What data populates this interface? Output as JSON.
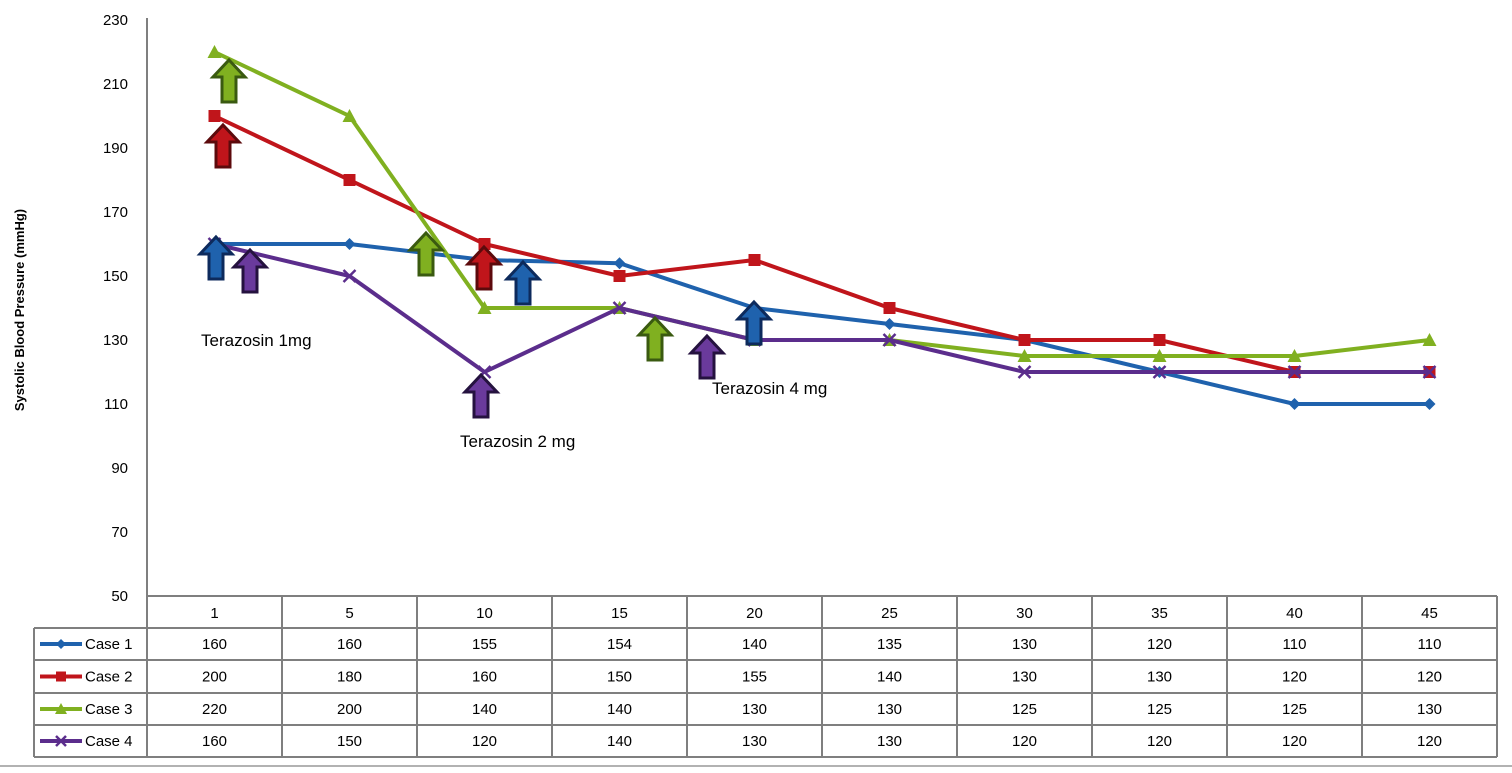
{
  "chart_data": {
    "type": "line",
    "title": "",
    "xlabel": "",
    "ylabel": "Systolic Blood Pressure (mmHg)",
    "ylim": [
      50,
      230
    ],
    "yticks": [
      50,
      70,
      90,
      110,
      130,
      150,
      170,
      190,
      210,
      230
    ],
    "grid": false,
    "legend_placement": "data-table-left",
    "categories": [
      "1",
      "5",
      "10",
      "15",
      "20",
      "25",
      "30",
      "35",
      "40",
      "45"
    ],
    "series": [
      {
        "name": "Case 1",
        "color": "#1f62ad",
        "marker": "diamond",
        "values": [
          160,
          160,
          155,
          154,
          140,
          135,
          130,
          120,
          110,
          110
        ]
      },
      {
        "name": "Case 2",
        "color": "#c0151b",
        "marker": "square",
        "values": [
          200,
          180,
          160,
          150,
          155,
          140,
          130,
          130,
          120,
          120
        ]
      },
      {
        "name": "Case 3",
        "color": "#80b020",
        "marker": "triangle",
        "values": [
          220,
          200,
          140,
          140,
          130,
          130,
          125,
          125,
          125,
          130
        ]
      },
      {
        "name": "Case 4",
        "color": "#5b2d8c",
        "marker": "x",
        "values": [
          160,
          150,
          120,
          140,
          130,
          130,
          120,
          120,
          120,
          120
        ]
      }
    ],
    "annotations": [
      "Terazosin 1mg",
      "Terazosin 2 mg",
      "Terazosin 4 mg"
    ]
  }
}
